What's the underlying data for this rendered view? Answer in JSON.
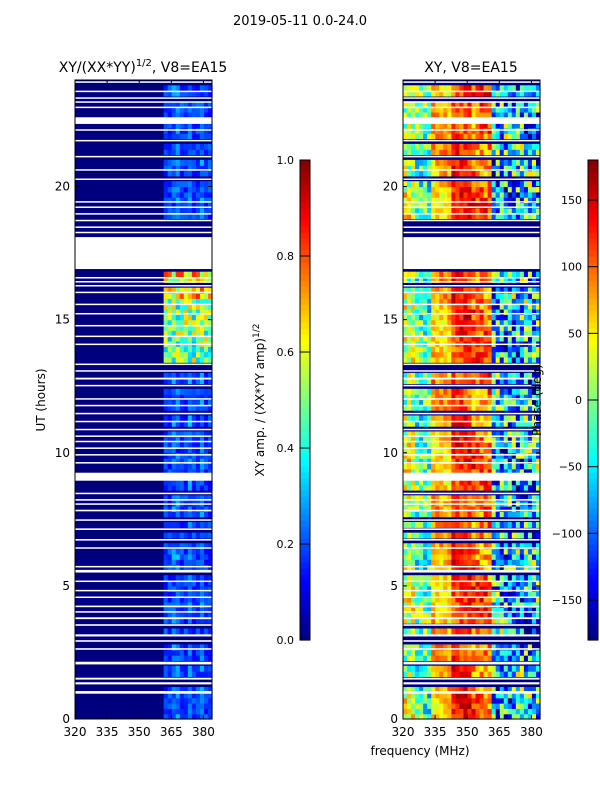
{
  "figure": {
    "suptitle": "2019-05-11 0.0-24.0",
    "xlabel": "frequency (MHz)"
  },
  "chart_data": [
    {
      "type": "heatmap",
      "title_main": "XY/(XX*YY)",
      "title_sup": "1/2",
      "title_tail": ", V8=EA15",
      "xlabel": "",
      "ylabel": "UT (hours)",
      "xlim": [
        320,
        384
      ],
      "ylim": [
        0,
        24
      ],
      "xticks": [
        320,
        335,
        350,
        365,
        380
      ],
      "yticks": [
        0,
        5,
        10,
        15,
        20
      ],
      "colorbar": {
        "label_main": "XY amp. / (XX*YY amp)",
        "label_sup": "1/2",
        "range": [
          0.0,
          1.0
        ],
        "ticks": [
          "0.0",
          "0.2",
          "0.4",
          "0.6",
          "0.8",
          "1.0"
        ]
      },
      "description_rows": "amplitude near 0 (dark blue) below 360 MHz, low-moderate values 361-383 MHz, bright (0.4-0.8) near 14-16.5 h"
    },
    {
      "type": "heatmap",
      "title_main": "XY, V8=EA15",
      "xlabel": "",
      "ylabel": "",
      "xlim": [
        320,
        384
      ],
      "ylim": [
        0,
        24
      ],
      "xticks": [
        320,
        335,
        350,
        365,
        380
      ],
      "yticks": [
        0,
        5,
        10,
        15,
        20
      ],
      "colorbar": {
        "label": "Phase (deg)",
        "range": [
          -180,
          180
        ],
        "ticks": [
          "150",
          "100",
          "50",
          "0",
          "−50",
          "−100",
          "−150"
        ],
        "tick_values": [
          150,
          100,
          50,
          0,
          -50,
          -100,
          -150
        ]
      }
    }
  ],
  "gaps_hours": [
    [
      0.95,
      1.05
    ],
    [
      1.3,
      1.38
    ],
    [
      1.48,
      1.55
    ],
    [
      2.05,
      2.15
    ],
    [
      2.6,
      2.66
    ],
    [
      2.9,
      2.96
    ],
    [
      3.1,
      3.18
    ],
    [
      3.5,
      3.56
    ],
    [
      3.75,
      3.82
    ],
    [
      4.0,
      4.05
    ],
    [
      4.2,
      4.26
    ],
    [
      4.55,
      4.6
    ],
    [
      4.8,
      4.85
    ],
    [
      5.15,
      5.2
    ],
    [
      5.5,
      5.6
    ],
    [
      5.7,
      5.75
    ],
    [
      6.4,
      6.45
    ],
    [
      6.7,
      6.76
    ],
    [
      7.1,
      7.16
    ],
    [
      7.45,
      7.5
    ],
    [
      7.8,
      7.86
    ],
    [
      8.05,
      8.1
    ],
    [
      8.2,
      8.26
    ],
    [
      8.45,
      8.5
    ],
    [
      8.95,
      9.25
    ],
    [
      9.6,
      9.65
    ],
    [
      9.9,
      9.95
    ],
    [
      10.15,
      10.2
    ],
    [
      10.4,
      10.45
    ],
    [
      10.6,
      10.65
    ],
    [
      10.85,
      10.9
    ],
    [
      11.15,
      11.2
    ],
    [
      11.45,
      11.5
    ],
    [
      11.75,
      11.8
    ],
    [
      12.0,
      12.05
    ],
    [
      12.5,
      12.55
    ],
    [
      12.75,
      12.82
    ],
    [
      13.05,
      13.1
    ],
    [
      13.3,
      13.35
    ],
    [
      14.05,
      14.1
    ],
    [
      14.35,
      14.4
    ],
    [
      14.75,
      14.8
    ],
    [
      15.2,
      15.25
    ],
    [
      15.55,
      15.6
    ],
    [
      16.0,
      16.05
    ],
    [
      16.25,
      16.3
    ],
    [
      16.4,
      16.45
    ],
    [
      16.55,
      16.6
    ],
    [
      16.9,
      18.1
    ],
    [
      18.25,
      18.3
    ],
    [
      18.45,
      18.5
    ],
    [
      18.7,
      18.75
    ],
    [
      18.95,
      19.0
    ],
    [
      19.2,
      19.25
    ],
    [
      19.4,
      19.45
    ],
    [
      20.25,
      20.3
    ],
    [
      20.6,
      20.65
    ],
    [
      21.1,
      21.15
    ],
    [
      21.7,
      21.75
    ],
    [
      22.1,
      22.15
    ],
    [
      22.35,
      22.6
    ],
    [
      22.95,
      23.0
    ],
    [
      23.15,
      23.2
    ],
    [
      23.3,
      23.35
    ],
    [
      23.55,
      23.6
    ],
    [
      23.9,
      23.95
    ]
  ],
  "colors": {
    "low": "#00007f",
    "high": "#7f0000",
    "axis": "#000000",
    "gap": "#ffffff"
  }
}
